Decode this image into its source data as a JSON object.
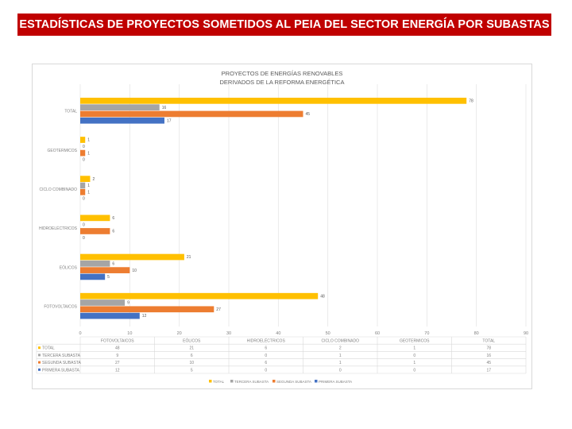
{
  "banner": {
    "title": "ESTADÍSTICAS DE PROYECTOS SOMETIDOS AL PEIA DEL SECTOR ENERGÍA POR SUBASTAS"
  },
  "chart_data": {
    "type": "bar",
    "orientation": "horizontal",
    "title": "PROYECTOS DE ENERGÍAS RENOVABLES",
    "subtitle": "DERIVADOS DE LA REFORMA ENERGÉTICA",
    "categories": [
      "FOTOVOLTAICOS",
      "EÓLICOS",
      "HIDROELÉCTRICOS",
      "CICLO COMBINADO",
      "GEOTERMICOS",
      "TOTAL"
    ],
    "series": [
      {
        "name": "TOTAL",
        "color": "#ffc000",
        "values": [
          48,
          21,
          6,
          2,
          1,
          78
        ]
      },
      {
        "name": "TERCERA SUBASTA",
        "color": "#a5a5a5",
        "values": [
          9,
          6,
          0,
          1,
          0,
          16
        ]
      },
      {
        "name": "SEGUNDA SUBASTA",
        "color": "#ed7d31",
        "values": [
          27,
          10,
          6,
          1,
          1,
          45
        ]
      },
      {
        "name": "PRIMERA SUBASTA",
        "color": "#4472c4",
        "values": [
          12,
          5,
          0,
          0,
          0,
          17
        ]
      }
    ],
    "xlim": [
      0,
      90
    ],
    "xticks": [
      0,
      10,
      20,
      30,
      40,
      50,
      60,
      70,
      80,
      90
    ],
    "grid": true,
    "data_table": true,
    "legend": "bottom"
  }
}
